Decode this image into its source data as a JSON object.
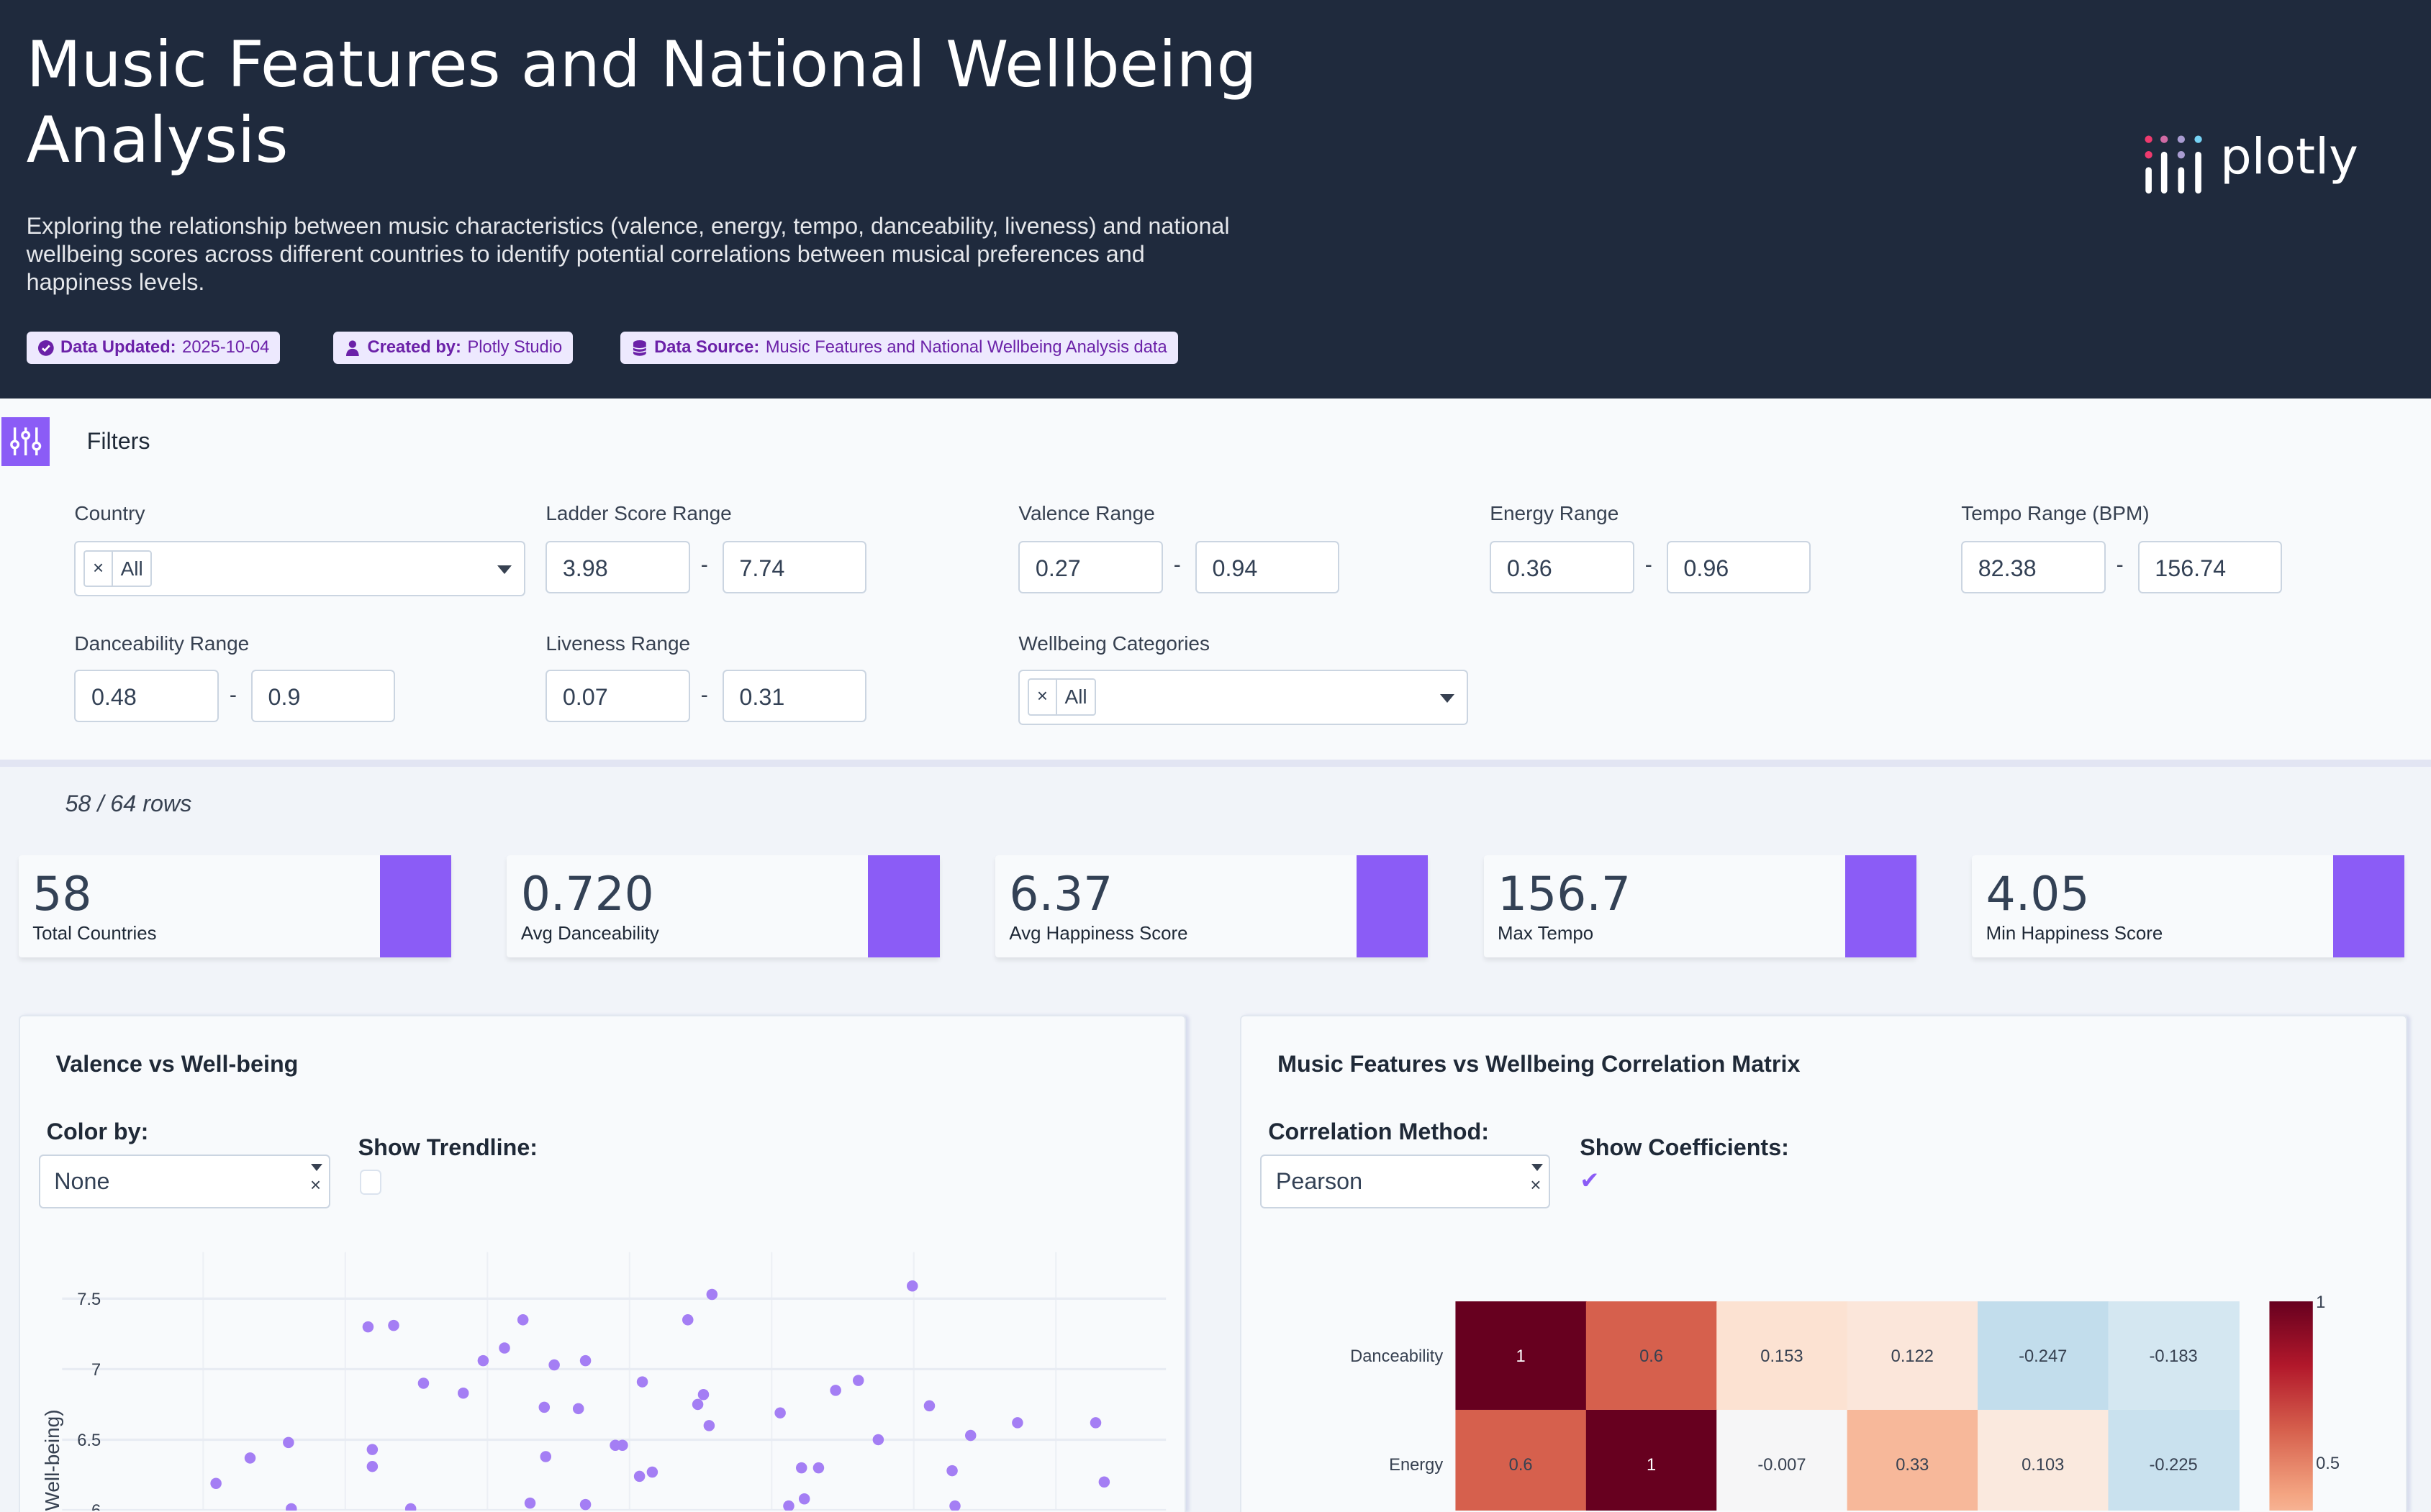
{
  "header": {
    "title": "Music Features and National Wellbeing Analysis",
    "description": "Exploring the relationship between music characteristics (valence, energy, tempo, danceability, liveness) and national wellbeing scores across different countries to identify potential correlations between musical preferences and happiness levels.",
    "badges": [
      {
        "icon": "check-circle-icon",
        "label": "Data Updated:",
        "value": "2025-10-04"
      },
      {
        "icon": "user-icon",
        "label": "Created by:",
        "value": "Plotly Studio"
      },
      {
        "icon": "database-icon",
        "label": "Data Source:",
        "value": "Music Features and National Wellbeing Analysis data"
      }
    ],
    "logo_text": "plotly"
  },
  "filters": {
    "title": "Filters",
    "country": {
      "label": "Country",
      "chip": "All",
      "chip_remove": "×"
    },
    "ladder": {
      "label": "Ladder Score Range",
      "min": "3.98",
      "max": "7.74"
    },
    "valence": {
      "label": "Valence Range",
      "min": "0.27",
      "max": "0.94"
    },
    "energy": {
      "label": "Energy Range",
      "min": "0.36",
      "max": "0.96"
    },
    "tempo": {
      "label": "Tempo Range (BPM)",
      "min": "82.38",
      "max": "156.74"
    },
    "danceability": {
      "label": "Danceability Range",
      "min": "0.48",
      "max": "0.9"
    },
    "liveness": {
      "label": "Liveness Range",
      "min": "0.07",
      "max": "0.31"
    },
    "wellbeing": {
      "label": "Wellbeing Categories",
      "chip": "All",
      "chip_remove": "×"
    },
    "dash": "-"
  },
  "row_count": "58 / 64 rows",
  "kpis": [
    {
      "value": "58",
      "label": "Total Countries"
    },
    {
      "value": "0.720",
      "label": "Avg Danceability"
    },
    {
      "value": "6.37",
      "label": "Avg Happiness Score"
    },
    {
      "value": "156.7",
      "label": "Max Tempo"
    },
    {
      "value": "4.05",
      "label": "Min Happiness Score"
    }
  ],
  "scatter_card": {
    "title": "Valence vs Well-being",
    "color_by_label": "Color by:",
    "color_by_value": "None",
    "clear": "×",
    "trendline_label": "Show Trendline:",
    "trendline_checked": false
  },
  "corr_card": {
    "title": "Music Features vs Wellbeing Correlation Matrix",
    "method_label": "Correlation Method:",
    "method_value": "Pearson",
    "clear": "×",
    "coeff_label": "Show Coefficients:",
    "coeff_checked": true,
    "check_mark": "✔"
  },
  "colors": {
    "accent": "#8b5cf6",
    "header_bg": "#1f2a3d",
    "point": "#a47ef4"
  },
  "chart_data": [
    {
      "type": "scatter",
      "title": "Valence vs Well-being",
      "xlabel": "",
      "ylabel": "Well-being)",
      "ylim": [
        5.97,
        7.7
      ],
      "xlim": [
        0.2,
        0.98
      ],
      "yticks": [
        "7.5",
        "7",
        "6.5",
        "6"
      ],
      "ytick_values": [
        7.5,
        7,
        6.5,
        6
      ],
      "xgrid_values": [
        0.3,
        0.4,
        0.5,
        0.6,
        0.7,
        0.8,
        0.9
      ],
      "points": [
        [
          0.416,
          7.3
        ],
        [
          0.434,
          7.31
        ],
        [
          0.525,
          7.35
        ],
        [
          0.641,
          7.35
        ],
        [
          0.658,
          7.53
        ],
        [
          0.799,
          7.59
        ],
        [
          0.455,
          6.9
        ],
        [
          0.483,
          6.83
        ],
        [
          0.497,
          7.06
        ],
        [
          0.512,
          7.15
        ],
        [
          0.547,
          7.03
        ],
        [
          0.569,
          7.06
        ],
        [
          0.54,
          6.73
        ],
        [
          0.564,
          6.72
        ],
        [
          0.609,
          6.91
        ],
        [
          0.648,
          6.75
        ],
        [
          0.652,
          6.82
        ],
        [
          0.656,
          6.6
        ],
        [
          0.706,
          6.69
        ],
        [
          0.745,
          6.85
        ],
        [
          0.761,
          6.92
        ],
        [
          0.775,
          6.5
        ],
        [
          0.811,
          6.74
        ],
        [
          0.84,
          6.53
        ],
        [
          0.873,
          6.62
        ],
        [
          0.928,
          6.62
        ],
        [
          0.309,
          6.19
        ],
        [
          0.333,
          6.37
        ],
        [
          0.36,
          6.48
        ],
        [
          0.419,
          6.43
        ],
        [
          0.419,
          6.31
        ],
        [
          0.541,
          6.38
        ],
        [
          0.59,
          6.46
        ],
        [
          0.595,
          6.46
        ],
        [
          0.607,
          6.24
        ],
        [
          0.616,
          6.27
        ],
        [
          0.721,
          6.3
        ],
        [
          0.733,
          6.3
        ],
        [
          0.827,
          6.28
        ],
        [
          0.934,
          6.2
        ],
        [
          0.362,
          6.01
        ],
        [
          0.446,
          6.01
        ],
        [
          0.53,
          6.05
        ],
        [
          0.569,
          6.04
        ],
        [
          0.712,
          6.03
        ],
        [
          0.723,
          6.08
        ],
        [
          0.829,
          6.03
        ]
      ]
    },
    {
      "type": "heatmap",
      "title": "Music Features vs Wellbeing Correlation Matrix",
      "rows": [
        "Danceability",
        "Energy"
      ],
      "values": [
        [
          1,
          0.6,
          0.153,
          0.122,
          -0.247,
          -0.183
        ],
        [
          0.6,
          1,
          -0.007,
          0.33,
          0.103,
          -0.225
        ]
      ],
      "labels": [
        [
          "1",
          "0.6",
          "0.153",
          "0.122",
          "-0.247",
          "-0.183"
        ],
        [
          "0.6",
          "1",
          "-0.007",
          "0.33",
          "0.103",
          "-0.225"
        ]
      ],
      "zlim": [
        -1,
        1
      ],
      "colorscale": "RdBu reversed",
      "colorbar_ticks": [
        "1",
        "0.5"
      ],
      "colorbar_tick_values": [
        1,
        0.5
      ]
    }
  ]
}
